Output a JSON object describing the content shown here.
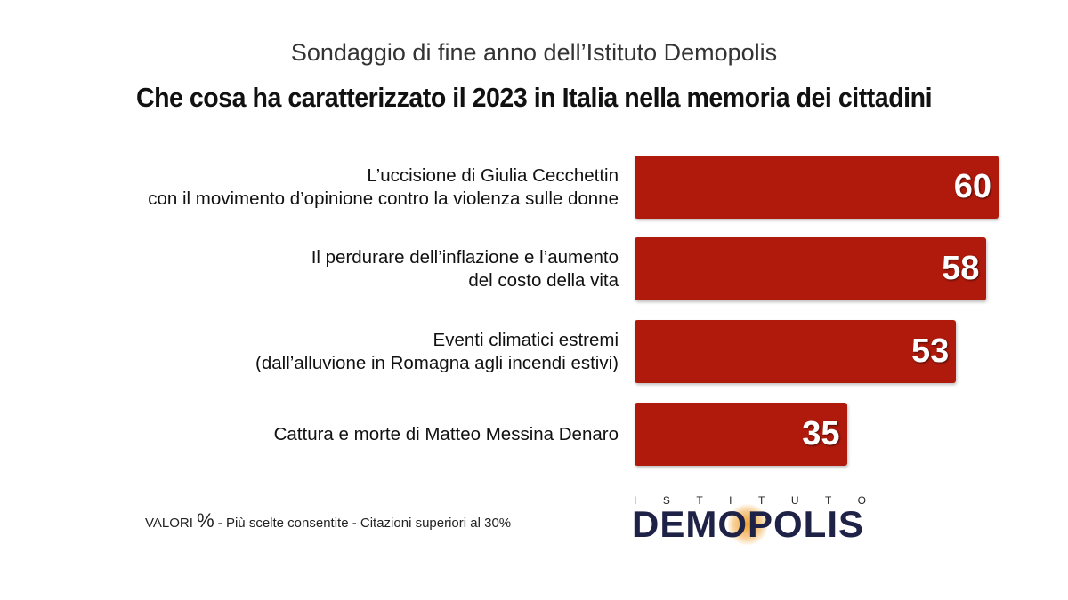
{
  "chart_data": {
    "type": "bar",
    "orientation": "horizontal",
    "subtitle": "Sondaggio di fine anno dell’Istituto Demopolis",
    "title": "Che cosa ha caratterizzato il 2023 in Italia nella memoria dei cittadini",
    "categories": [
      [
        "L’uccisione di Giulia Cecchettin",
        "con il movimento d’opinione contro la violenza sulle donne"
      ],
      [
        "Il perdurare dell’inflazione e l’aumento",
        "del costo della vita"
      ],
      [
        "Eventi climatici estremi",
        "(dall’alluvione in Romagna agli incendi estivi)"
      ],
      [
        "Cattura e morte di Matteo Messina Denaro"
      ]
    ],
    "values": [
      60,
      58,
      53,
      35
    ],
    "bar_color": "#b01a0c",
    "grid": false,
    "legend": "none"
  },
  "footer": {
    "note_prefix": "VALORI",
    "note_pct": "%",
    "note_rest": " - Più scelte consentite - Citazioni superiori al 30%"
  },
  "logo": {
    "top": "ISTITUTO",
    "main": "DEMOPOLIS",
    "color": "#1e2247"
  }
}
